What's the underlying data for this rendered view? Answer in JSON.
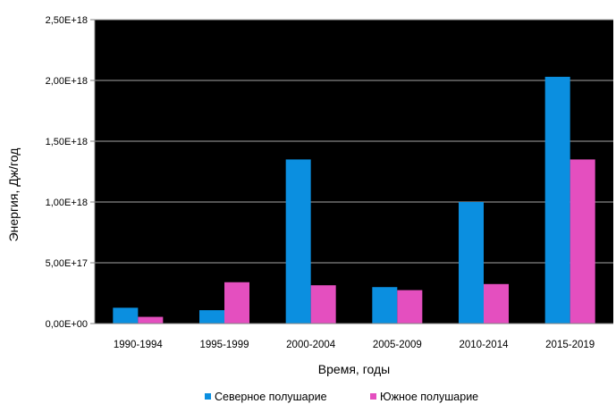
{
  "chart_data": {
    "type": "bar",
    "title": "",
    "xlabel": "Время, годы",
    "ylabel": "Энергия, Дж/год",
    "categories": [
      "1990-1994",
      "1995-1999",
      "2000-2004",
      "2005-2009",
      "2010-2014",
      "2015-2019"
    ],
    "series": [
      {
        "name": "Северное полушарие",
        "color": "#0b8fe0",
        "values": [
          1.3e+17,
          1.1e+17,
          1.35e+18,
          3e+17,
          1e+18,
          2.03e+18
        ]
      },
      {
        "name": "Южное полушарие",
        "color": "#e44fbf",
        "values": [
          5.5e+16,
          3.4e+17,
          3.15e+17,
          2.75e+17,
          3.25e+17,
          1.35e+18
        ]
      }
    ],
    "ylim": [
      0,
      2.5e+18
    ],
    "yticks": [
      0,
      5e+17,
      1e+18,
      1.5e+18,
      2e+18,
      2.5e+18
    ],
    "ytick_labels": [
      "0,00E+00",
      "5,00E+17",
      "1,00E+18",
      "1,50E+18",
      "2,00E+18",
      "2,50E+18"
    ],
    "plot_background": "#000000",
    "grid": true,
    "grid_color": "#a6a6a6",
    "legend_position": "bottom"
  }
}
